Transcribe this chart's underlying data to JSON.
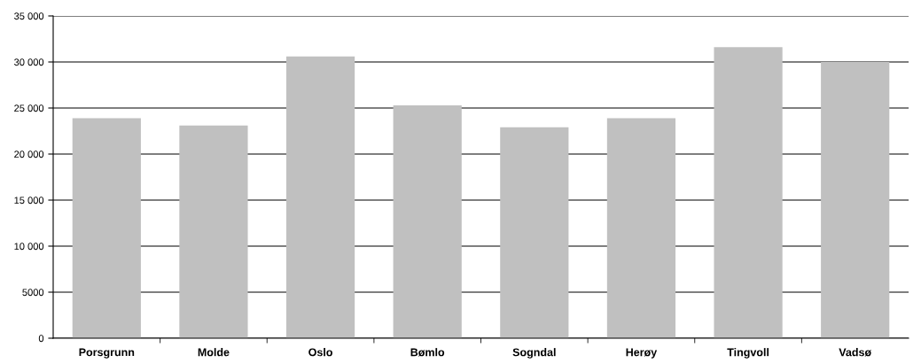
{
  "chart_data": {
    "type": "bar",
    "categories": [
      "Porsgrunn",
      "Molde",
      "Oslo",
      "Bømlo",
      "Sogndal",
      "Herøy",
      "Tingvoll",
      "Vadsø"
    ],
    "values": [
      23900,
      23100,
      30600,
      25300,
      22900,
      23900,
      31600,
      30000
    ],
    "color": "#c0c0c0",
    "ylim": [
      0,
      35000
    ],
    "yticks": [
      {
        "value": 0,
        "label": "0"
      },
      {
        "value": 5000,
        "label": "5000"
      },
      {
        "value": 10000,
        "label": "10 000"
      },
      {
        "value": 15000,
        "label": "15 000"
      },
      {
        "value": 20000,
        "label": "20 000"
      },
      {
        "value": 25000,
        "label": "25 000"
      },
      {
        "value": 30000,
        "label": "30 000"
      },
      {
        "value": 35000,
        "label": "35 000"
      }
    ],
    "grid": "y"
  }
}
